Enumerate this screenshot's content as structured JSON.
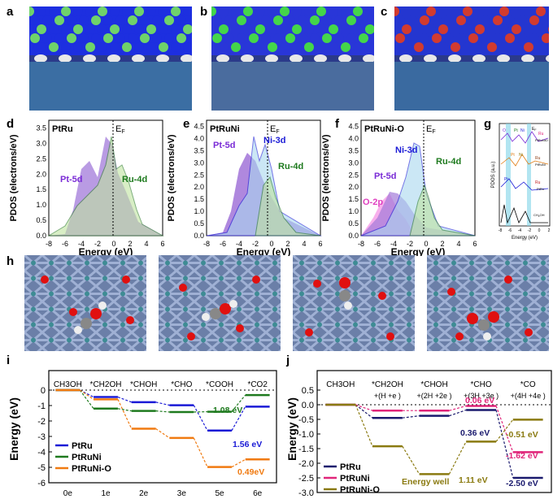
{
  "panel_labels": {
    "a": "a",
    "b": "b",
    "c": "c",
    "d": "d",
    "e": "e",
    "f": "f",
    "g": "g",
    "h": "h",
    "i": "i",
    "j": "j"
  },
  "slabs": [
    {
      "top": "#1d2fe0",
      "mid": "#6fd36a",
      "base": "#3b6ea3"
    },
    {
      "top": "#2936d8",
      "mid": "#44d64a",
      "base": "#4a6c9e"
    },
    {
      "top": "#2436d0",
      "mid": "#d23b2f",
      "base": "#3a6aa0"
    }
  ],
  "pdos_axes": {
    "xlabel": "Energy (eV)",
    "ylabel": "PDOS (electrons/eV)",
    "xticks": [
      "-8",
      "-6",
      "-4",
      "-2",
      "0",
      "2",
      "4",
      "6"
    ],
    "yticks": [
      "0.0",
      "0.5",
      "1.0",
      "1.5",
      "2.0",
      "2.5",
      "3.0",
      "3.5",
      "4.0",
      "4.5"
    ],
    "fermi": "E",
    "fermi_sub": "F"
  },
  "pdos_panels": [
    {
      "title": "PtRu",
      "labels": [
        "Pt-5d",
        "Ru-4d"
      ]
    },
    {
      "title": "PtRuNi",
      "labels": [
        "Pt-5d",
        "Ni-3d",
        "Ru-4d"
      ]
    },
    {
      "title": "PtRuNi-O",
      "labels": [
        "Pt-5d",
        "Ni-3d",
        "Ru-4d",
        "O-2p"
      ]
    }
  ],
  "panel_g": {
    "ylabel": "PDOS (a.u.)",
    "xlabel": "Energy (eV)",
    "xticks": [
      "-8",
      "-6",
      "-4",
      "-2",
      "0",
      "2"
    ],
    "labels": [
      "O",
      "Pt",
      "Ni",
      "E",
      "F",
      "Ru",
      "PtRuNiO",
      "Pt",
      "Ni",
      "Ru",
      "PtRuNi",
      "Pt",
      "Ru",
      "PtRu",
      "CH",
      "3",
      "OH"
    ]
  },
  "chart_data": [
    {
      "type": "line",
      "panel": "i",
      "categories": [
        "CH3OH",
        "*CH2OH",
        "*CHOH",
        "*CHO",
        "*COOH",
        "*CO2"
      ],
      "x_bottom": [
        "0e",
        "1e",
        "2e",
        "3e",
        "5e",
        "6e"
      ],
      "ylabel": "Energy (eV)",
      "ylim": [
        -6,
        0
      ],
      "yticks": [
        "0",
        "-1",
        "-2",
        "-3",
        "-4",
        "-5",
        "-6"
      ],
      "legend_position": "left",
      "series": [
        {
          "name": "PtRu",
          "color": "#1a1ad6",
          "values": [
            0,
            -0.45,
            -0.78,
            -0.98,
            -2.62,
            -1.07
          ]
        },
        {
          "name": "PtRuNi",
          "color": "#1e7a1e",
          "values": [
            0,
            -1.2,
            -1.35,
            -1.42,
            -1.4,
            -0.32
          ]
        },
        {
          "name": "PtRuNi-O",
          "color": "#f07a10",
          "values": [
            0,
            -0.6,
            -2.5,
            -3.1,
            -4.98,
            -4.49
          ]
        }
      ],
      "annotations": [
        "1.08 eV",
        "1.56 eV",
        "0.49eV"
      ]
    },
    {
      "type": "line",
      "panel": "j",
      "categories": [
        "CH3OH",
        "*CH2OH",
        "*CHOH",
        "*CHO",
        "*CO"
      ],
      "sub_categories": [
        "",
        "+(H +e )",
        "+(2H +2e )",
        "+(3H +3e )",
        "+(4H +4e )"
      ],
      "ylabel": "Energy (eV)",
      "ylim": [
        -3,
        0.5
      ],
      "yticks": [
        "0.5",
        "0.0",
        "-0.5",
        "-1.0",
        "-1.5",
        "-2.0",
        "-2.5",
        "-3.0"
      ],
      "legend_position": "bottom-left",
      "series": [
        {
          "name": "PtRu",
          "color": "#1a1a6e",
          "values": [
            0,
            -0.45,
            -0.38,
            -0.18,
            -2.5
          ]
        },
        {
          "name": "PtRuNi",
          "color": "#e0257a",
          "values": [
            0,
            -0.2,
            -0.2,
            -0.04,
            -1.62
          ]
        },
        {
          "name": "PtRuNi-O",
          "color": "#8a7a10",
          "values": [
            0,
            -1.42,
            -2.37,
            -1.26,
            -0.51
          ]
        }
      ],
      "annotations": [
        "0.06 eV",
        "0.36 eV",
        "1.11 eV",
        "-0.51 eV",
        "-1.62 eV",
        "-2.50 eV",
        "Energy well"
      ]
    }
  ]
}
